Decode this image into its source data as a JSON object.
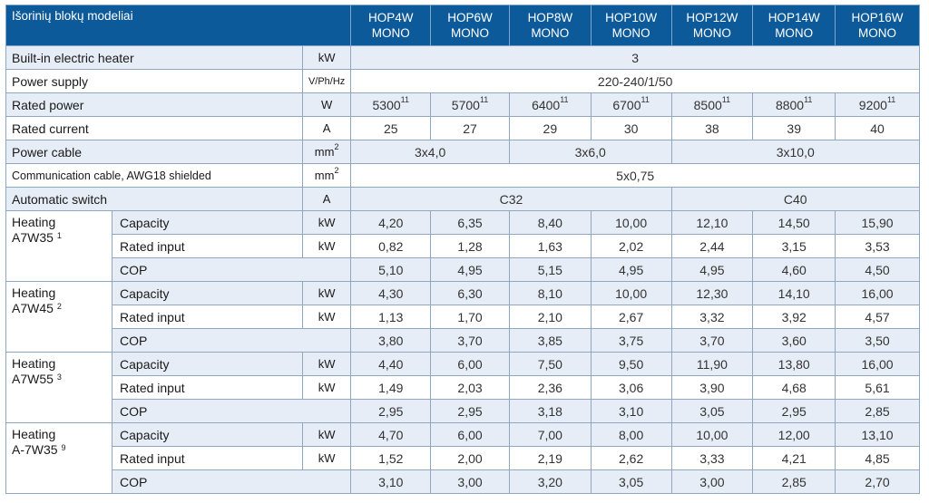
{
  "header": {
    "title": "Išorinių blokų modeliai",
    "models": [
      {
        "line1": "HOP4W",
        "line2": "MONO"
      },
      {
        "line1": "HOP6W",
        "line2": "MONO"
      },
      {
        "line1": "HOP8W",
        "line2": "MONO"
      },
      {
        "line1": "HOP10W",
        "line2": "MONO"
      },
      {
        "line1": "HOP12W",
        "line2": "MONO"
      },
      {
        "line1": "HOP14W",
        "line2": "MONO"
      },
      {
        "line1": "HOP16W",
        "line2": "MONO"
      }
    ]
  },
  "rows": {
    "heater": {
      "label": "Built-in electric heater",
      "unit": "kW",
      "value": "3"
    },
    "supply": {
      "label": "Power supply",
      "unit": "V/Ph/Hz",
      "value": "220-240/1/50"
    },
    "rated_power": {
      "label": "Rated power",
      "unit": "W",
      "values": [
        "5300",
        "5700",
        "6400",
        "6700",
        "8500",
        "8800",
        "9200"
      ],
      "footnote": "11"
    },
    "rated_current": {
      "label": "Rated current",
      "unit": "A",
      "values": [
        "25",
        "27",
        "29",
        "30",
        "38",
        "39",
        "40"
      ]
    },
    "power_cable": {
      "label": "Power cable",
      "unit": "mm",
      "unit_sup": "2",
      "values": [
        "3x4,0",
        "3x6,0",
        "3x10,0"
      ]
    },
    "comm_cable": {
      "label": "Communication cable, AWG18 shielded",
      "unit": "mm",
      "unit_sup": "2",
      "value": "5x0,75"
    },
    "auto_switch": {
      "label": "Automatic switch",
      "unit": "A",
      "values": [
        "C32",
        "C40"
      ]
    }
  },
  "groups": [
    {
      "label_line1": "Heating",
      "label_line2": "A7W35",
      "footnote": "1",
      "capacity": {
        "label": "Capacity",
        "unit": "kW",
        "values": [
          "4,20",
          "6,35",
          "8,40",
          "10,00",
          "12,10",
          "14,50",
          "15,90"
        ]
      },
      "input": {
        "label": "Rated input",
        "unit": "kW",
        "values": [
          "0,82",
          "1,28",
          "1,63",
          "2,02",
          "2,44",
          "3,15",
          "3,53"
        ]
      },
      "cop": {
        "label": "COP",
        "values": [
          "5,10",
          "4,95",
          "5,15",
          "4,95",
          "4,95",
          "4,60",
          "4,50"
        ]
      }
    },
    {
      "label_line1": "Heating",
      "label_line2": "A7W45",
      "footnote": "2",
      "capacity": {
        "label": "Capacity",
        "unit": "kW",
        "values": [
          "4,30",
          "6,30",
          "8,10",
          "10,00",
          "12,30",
          "14,10",
          "16,00"
        ]
      },
      "input": {
        "label": "Rated input",
        "unit": "kW",
        "values": [
          "1,13",
          "1,70",
          "2,10",
          "2,67",
          "3,32",
          "3,92",
          "4,57"
        ]
      },
      "cop": {
        "label": "COP",
        "values": [
          "3,80",
          "3,70",
          "3,85",
          "3,75",
          "3,70",
          "3,60",
          "3,50"
        ]
      }
    },
    {
      "label_line1": "Heating",
      "label_line2": "A7W55",
      "footnote": "3",
      "capacity": {
        "label": "Capacity",
        "unit": "kW",
        "values": [
          "4,40",
          "6,00",
          "7,50",
          "9,50",
          "11,90",
          "13,80",
          "16,00"
        ]
      },
      "input": {
        "label": "Rated input",
        "unit": "kW",
        "values": [
          "1,49",
          "2,03",
          "2,36",
          "3,06",
          "3,90",
          "4,68",
          "5,61"
        ]
      },
      "cop": {
        "label": "COP",
        "values": [
          "2,95",
          "2,95",
          "3,18",
          "3,10",
          "3,05",
          "2,95",
          "2,85"
        ]
      }
    },
    {
      "label_line1": "Heating",
      "label_line2": "A-7W35",
      "footnote": "9",
      "capacity": {
        "label": "Capacity",
        "unit": "kW",
        "values": [
          "4,70",
          "6,00",
          "7,00",
          "8,00",
          "10,00",
          "12,00",
          "13,10"
        ]
      },
      "input": {
        "label": "Rated input",
        "unit": "kW",
        "values": [
          "1,52",
          "2,00",
          "2,19",
          "2,62",
          "3,33",
          "4,21",
          "4,85"
        ]
      },
      "cop": {
        "label": "COP",
        "values": [
          "3,10",
          "3,00",
          "3,20",
          "3,05",
          "3,00",
          "2,85",
          "2,70"
        ]
      }
    }
  ],
  "colors": {
    "header_bg": "#0d5a9a",
    "alt_row": "#e6edf6",
    "border": "#8fa7bf"
  }
}
